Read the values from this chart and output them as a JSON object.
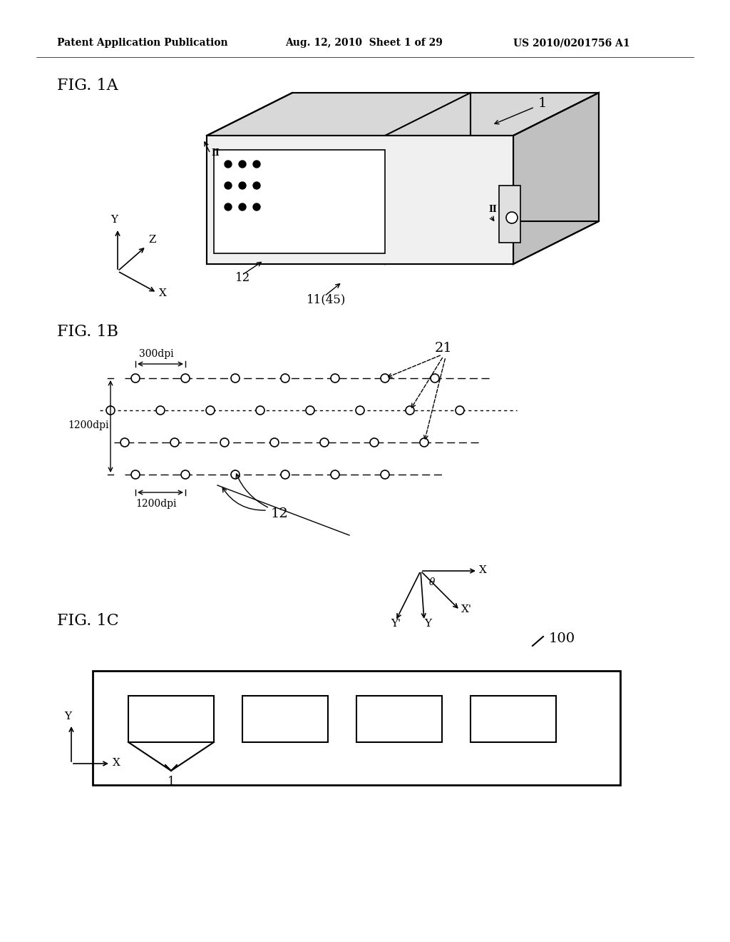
{
  "bg_color": "#ffffff",
  "header_left": "Patent Application Publication",
  "header_mid": "Aug. 12, 2010  Sheet 1 of 29",
  "header_right": "US 2010/0201756 A1",
  "fig1a_label": "FIG. 1A",
  "fig1b_label": "FIG. 1B",
  "fig1c_label": "FIG. 1C"
}
